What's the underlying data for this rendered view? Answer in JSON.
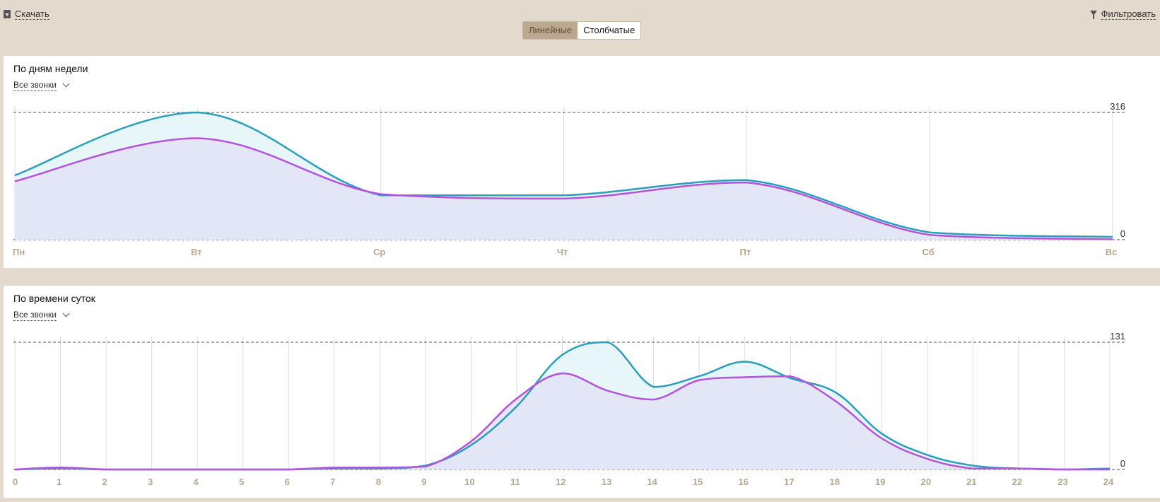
{
  "toolbar": {
    "download_label": "Скачать",
    "filter_label": "Фильтровать",
    "view_toggle": {
      "line_label": "Линейные",
      "bar_label": "Столбчатые",
      "active": "line"
    }
  },
  "colors": {
    "series_a": "#2a9ebd",
    "series_b": "#b652e0",
    "area_a": "#e7f6f8",
    "area_b": "#e2e3f7",
    "tick": "#b8a78e"
  },
  "chart_data": [
    {
      "type": "area",
      "title": "По дням недели",
      "filter_label": "Все звонки",
      "categories": [
        "Пн",
        "Вт",
        "Ср",
        "Чт",
        "Пт",
        "Сб",
        "Вс"
      ],
      "ylim": [
        0,
        316
      ],
      "ytick_labels": [
        "316",
        "0"
      ],
      "grid": true,
      "series": [
        {
          "values": [
            160,
            316,
            110,
            110,
            148,
            18,
            7
          ]
        },
        {
          "values": [
            145,
            252,
            113,
            102,
            142,
            12,
            1
          ]
        }
      ]
    },
    {
      "type": "area",
      "title": "По времени суток",
      "filter_label": "Все звонки",
      "categories": [
        "0",
        "1",
        "2",
        "3",
        "4",
        "5",
        "6",
        "7",
        "8",
        "9",
        "10",
        "11",
        "12",
        "13",
        "14",
        "15",
        "16",
        "17",
        "18",
        "19",
        "20",
        "21",
        "22",
        "23",
        "24"
      ],
      "ylim": [
        0,
        131
      ],
      "ytick_labels": [
        "131",
        "0"
      ],
      "grid": true,
      "series": [
        {
          "values": [
            0,
            1,
            0,
            0,
            0,
            0,
            0,
            1,
            1,
            4,
            25,
            65,
            118,
            131,
            85,
            96,
            111,
            94,
            79,
            37,
            15,
            4,
            1,
            0,
            1
          ]
        },
        {
          "values": [
            0,
            2,
            0,
            0,
            0,
            0,
            0,
            2,
            2,
            3,
            29,
            73,
            99,
            81,
            72,
            92,
            95,
            96,
            70,
            32,
            11,
            1,
            1,
            0,
            0
          ]
        }
      ]
    }
  ]
}
